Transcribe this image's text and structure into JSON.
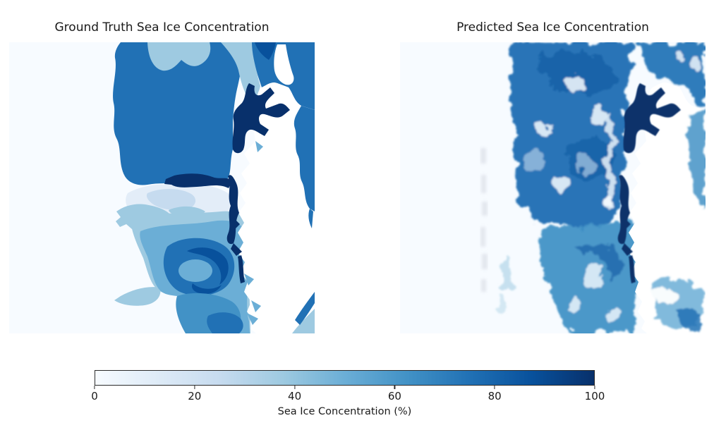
{
  "palette": {
    "figure_bg": "#ffffff",
    "text": "#1a1a1a",
    "axis": "#2b2b2b",
    "land": "#ffffff",
    "artifact": "#c9cfda",
    "c0": "#f7fbff",
    "c10": "#e3edf8",
    "c30": "#c6dbef",
    "c40": "#9ecae1",
    "c50": "#6baed6",
    "c65": "#4292c6",
    "c75": "#2171b5",
    "c90": "#08519c",
    "c100": "#08306b"
  },
  "panels": [
    {
      "title": "Ground Truth Sea Ice Concentration"
    },
    {
      "title": "Predicted Sea Ice Concentration"
    }
  ],
  "colorbar": {
    "label": "Sea Ice Concentration (%)",
    "ticks": [
      "0",
      "20",
      "40",
      "60",
      "80",
      "100"
    ],
    "tick_values": [
      0,
      20,
      40,
      60,
      80,
      100
    ],
    "min": 0,
    "max": 100,
    "orientation": "horizontal",
    "colormap": "Blues",
    "gradient_stops": [
      "#f7fbff",
      "#deebf7",
      "#c6dbef",
      "#9ecae1",
      "#6baed6",
      "#4292c6",
      "#2171b5",
      "#08519c",
      "#08306b"
    ]
  },
  "chart_data": {
    "type": "heatmap",
    "field": "sea_ice_concentration_pct",
    "value_range": [
      0,
      100
    ],
    "colormap": "Blues",
    "legend_position": "bottom-horizontal-colorbar",
    "grid": false,
    "panels": [
      {
        "title": "Ground Truth Sea Ice Concentration",
        "style": "discrete filled-contour regions with crisp boundaries",
        "regions": [
          {
            "name": "open water, western half",
            "value_pct": 0
          },
          {
            "name": "pale inshore zone, center",
            "value_pct": 10
          },
          {
            "name": "light pack lobes at top center",
            "value_pct": 40
          },
          {
            "name": "claw-shaped floe, mid-left",
            "value_pct": 40
          },
          {
            "name": "southwest pointed floe (beak)",
            "value_pct": 40
          },
          {
            "name": "main ice tongue, upper center",
            "value_pct": 75
          },
          {
            "name": "northeast pack along top-right corner",
            "value_pct": 75
          },
          {
            "name": "dense patch at top edge",
            "value_pct": 90
          },
          {
            "name": "southern pack field",
            "value_pct": 55
          },
          {
            "name": "eddy ring, lower center",
            "value_pct": 75
          },
          {
            "name": "eddy crescent core",
            "value_pct": 90
          },
          {
            "name": "southern dense blob at bottom",
            "value_pct": 75
          },
          {
            "name": "southeast coastal light band",
            "value_pct": 40
          },
          {
            "name": "fjord fast ice along coast",
            "value_pct": 100
          },
          {
            "name": "land (Greenland-like coast, right side)",
            "value_pct": null
          }
        ]
      },
      {
        "title": "Predicted Sea Ice Concentration",
        "style": "continuous smooth field, turbulent mottled texture, wispy edges, faint vertical smudge artifacts left of ice edge",
        "regions": [
          {
            "name": "open water, western half",
            "value_pct_range": [
              0,
              5
            ]
          },
          {
            "name": "main ice tongue, upper center (mottled)",
            "value_pct_range": [
              60,
              90
            ]
          },
          {
            "name": "bright lacunae inside tongue",
            "value_pct_range": [
              10,
              30
            ]
          },
          {
            "name": "southern eddy swirls",
            "value_pct_range": [
              40,
              85
            ]
          },
          {
            "name": "southeast coastal ice spill",
            "value_pct_range": [
              40,
              75
            ]
          },
          {
            "name": "fjord fast ice along coast",
            "value_pct_range": [
              90,
              100
            ]
          },
          {
            "name": "faint artifact column",
            "value_pct_range": [
              0,
              10
            ]
          },
          {
            "name": "land (right side)",
            "value_pct": null
          }
        ]
      }
    ],
    "colorbar": {
      "label": "Sea Ice Concentration (%)",
      "tick_values": [
        0,
        20,
        40,
        60,
        80,
        100
      ],
      "range": [
        0,
        100
      ],
      "colormap": "Blues"
    }
  }
}
